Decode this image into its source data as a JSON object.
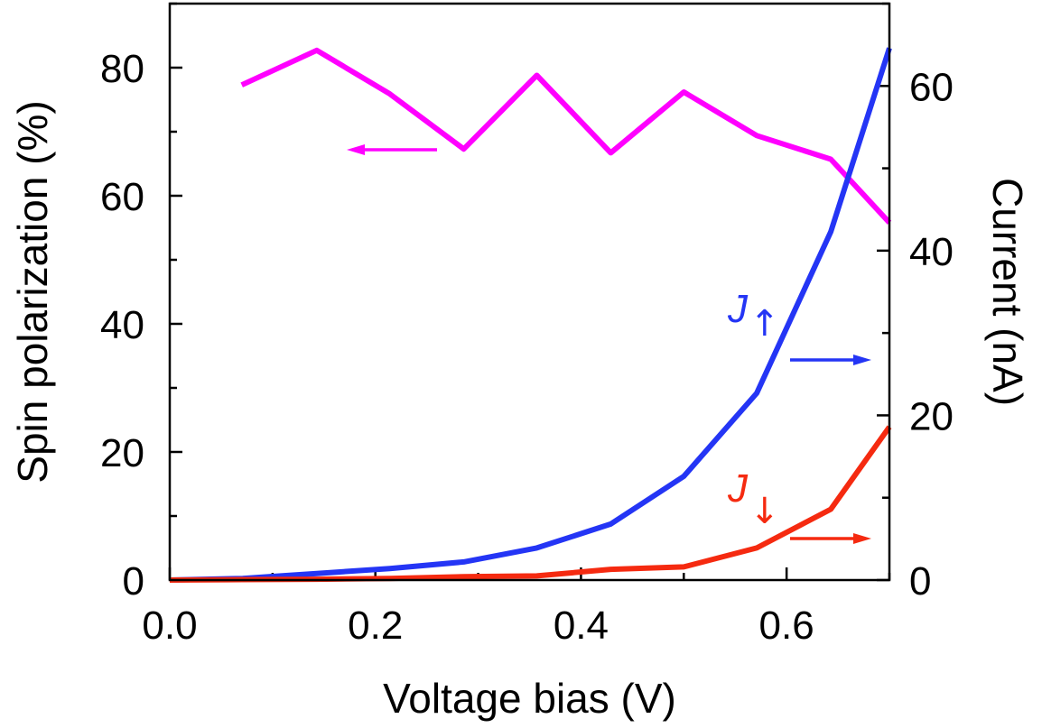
{
  "chart_data": {
    "type": "line",
    "xlabel": "Voltage bias (V)",
    "ylabel_left": "Spin polarization (%)",
    "ylabel_right": "Current (nA)",
    "xlim": [
      0,
      0.7
    ],
    "ylim_left": [
      0,
      90
    ],
    "ylim_right": [
      0,
      70
    ],
    "x_ticks": [
      "0.0",
      "0.2",
      "0.4",
      "0.6"
    ],
    "y_ticks_left": [
      "0",
      "20",
      "40",
      "60",
      "80"
    ],
    "y_ticks_right": [
      "0",
      "20",
      "40",
      "60"
    ],
    "grid": false,
    "series": [
      {
        "axis": "left",
        "color": "#ff00ff",
        "x": [
          0.07,
          0.143,
          0.214,
          0.286,
          0.357,
          0.429,
          0.5,
          0.571,
          0.643,
          0.7
        ],
        "y": [
          77.3,
          82.7,
          75.9,
          67.3,
          78.8,
          66.7,
          76.2,
          69.4,
          65.7,
          55.8
        ]
      },
      {
        "name": "J",
        "subscript": "↑",
        "axis": "right",
        "color": "#2435f5",
        "x": [
          0,
          0.071,
          0.143,
          0.214,
          0.286,
          0.357,
          0.429,
          0.5,
          0.571,
          0.643,
          0.7
        ],
        "y": [
          0,
          0.2,
          0.8,
          1.4,
          2.2,
          3.9,
          6.8,
          12.6,
          22.7,
          42.3,
          64.6
        ]
      },
      {
        "name": "J",
        "subscript": "↓",
        "axis": "right",
        "color": "#f52a10",
        "x": [
          0,
          0.071,
          0.143,
          0.214,
          0.286,
          0.357,
          0.429,
          0.5,
          0.571,
          0.643,
          0.7
        ],
        "y": [
          0,
          0.05,
          0.1,
          0.2,
          0.4,
          0.5,
          1.3,
          1.6,
          3.9,
          8.6,
          18.6
        ]
      }
    ]
  }
}
